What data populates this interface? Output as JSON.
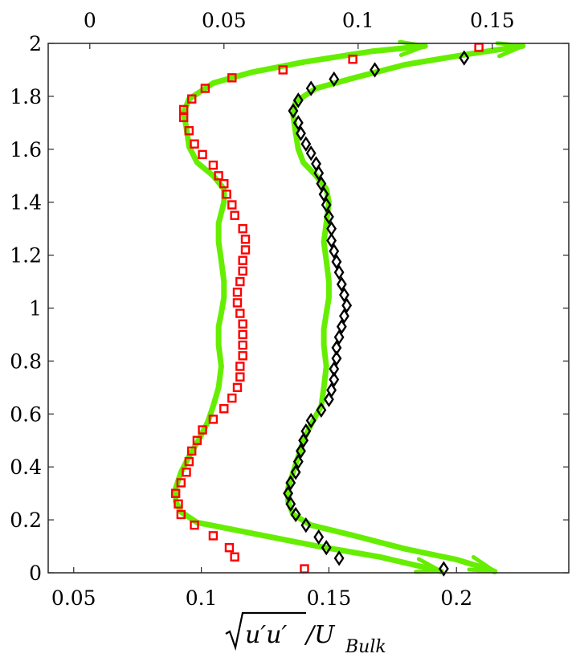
{
  "chart_data": {
    "type": "line",
    "xlabel": "√(u'u')/U_Bulk",
    "xlabel_parts": {
      "sqrt_text": "u′u′",
      "rest_text": "/U",
      "subscript": "Bulk"
    },
    "bottom_axis": {
      "ticks": [
        0.05,
        0.1,
        0.15,
        0.2
      ],
      "tick_labels": [
        "0.05",
        "0.1",
        "0.15",
        "0.2"
      ],
      "xlim": [
        0.04,
        0.244
      ]
    },
    "top_axis": {
      "ticks": [
        0,
        0.05,
        0.1,
        0.15
      ],
      "tick_labels": [
        "0",
        "0.05",
        "0.1",
        "0.15"
      ],
      "xlim": [
        -0.0155,
        0.1785
      ]
    },
    "y_axis": {
      "ticks": [
        0,
        0.2,
        0.4,
        0.6,
        0.8,
        1,
        1.2,
        1.4,
        1.6,
        1.8,
        2
      ],
      "tick_labels": [
        "0",
        "0.2",
        "0.4",
        "0.6",
        "0.8",
        "1",
        "1.2",
        "1.4",
        "1.6",
        "1.8",
        "2"
      ],
      "ylim": [
        0,
        2
      ]
    },
    "grid": false,
    "legend": "none",
    "colors": {
      "line": "#66ee00",
      "squares": "#ff0000",
      "diamonds": "#000000"
    },
    "series": [
      {
        "kind": "line",
        "axis": "top",
        "points": [
          [
            0.125,
            1.99
          ],
          [
            0.105,
            1.97
          ],
          [
            0.08,
            1.93
          ],
          [
            0.06,
            1.89
          ],
          [
            0.046,
            1.85
          ],
          [
            0.037,
            1.79
          ],
          [
            0.035,
            1.74
          ],
          [
            0.036,
            1.68
          ],
          [
            0.037,
            1.61
          ],
          [
            0.04,
            1.55
          ],
          [
            0.046,
            1.5
          ],
          [
            0.05,
            1.45
          ],
          [
            0.05,
            1.4
          ],
          [
            0.048,
            1.32
          ],
          [
            0.048,
            1.25
          ],
          [
            0.049,
            1.18
          ],
          [
            0.05,
            1.1
          ],
          [
            0.05,
            1.04
          ],
          [
            0.049,
            0.98
          ],
          [
            0.048,
            0.93
          ],
          [
            0.048,
            0.86
          ],
          [
            0.049,
            0.78
          ],
          [
            0.048,
            0.7
          ],
          [
            0.046,
            0.63
          ],
          [
            0.044,
            0.57
          ],
          [
            0.041,
            0.51
          ],
          [
            0.037,
            0.44
          ],
          [
            0.034,
            0.38
          ],
          [
            0.032,
            0.32
          ],
          [
            0.032,
            0.27
          ],
          [
            0.034,
            0.23
          ],
          [
            0.04,
            0.19
          ],
          [
            0.06,
            0.15
          ],
          [
            0.085,
            0.1
          ],
          [
            0.108,
            0.06
          ],
          [
            0.125,
            0.02
          ],
          [
            0.131,
            0.005
          ]
        ]
      },
      {
        "kind": "line",
        "axis": "bottom",
        "points": [
          [
            0.226,
            1.99
          ],
          [
            0.205,
            1.96
          ],
          [
            0.18,
            1.92
          ],
          [
            0.16,
            1.87
          ],
          [
            0.145,
            1.83
          ],
          [
            0.137,
            1.78
          ],
          [
            0.136,
            1.73
          ],
          [
            0.137,
            1.66
          ],
          [
            0.138,
            1.6
          ],
          [
            0.14,
            1.55
          ],
          [
            0.145,
            1.5
          ],
          [
            0.149,
            1.45
          ],
          [
            0.15,
            1.4
          ],
          [
            0.149,
            1.32
          ],
          [
            0.148,
            1.25
          ],
          [
            0.149,
            1.18
          ],
          [
            0.15,
            1.1
          ],
          [
            0.15,
            1.04
          ],
          [
            0.149,
            0.98
          ],
          [
            0.148,
            0.92
          ],
          [
            0.148,
            0.86
          ],
          [
            0.149,
            0.78
          ],
          [
            0.148,
            0.7
          ],
          [
            0.147,
            0.63
          ],
          [
            0.143,
            0.56
          ],
          [
            0.14,
            0.5
          ],
          [
            0.138,
            0.44
          ],
          [
            0.136,
            0.38
          ],
          [
            0.134,
            0.32
          ],
          [
            0.134,
            0.27
          ],
          [
            0.136,
            0.22
          ],
          [
            0.143,
            0.18
          ],
          [
            0.16,
            0.14
          ],
          [
            0.18,
            0.09
          ],
          [
            0.2,
            0.05
          ],
          [
            0.212,
            0.015
          ],
          [
            0.215,
            0.005
          ]
        ]
      },
      {
        "kind": "squares",
        "axis": "top",
        "points": [
          [
            0.145,
            1.985
          ],
          [
            0.098,
            1.94
          ],
          [
            0.072,
            1.9
          ],
          [
            0.053,
            1.87
          ],
          [
            0.043,
            1.83
          ],
          [
            0.038,
            1.79
          ],
          [
            0.035,
            1.75
          ],
          [
            0.035,
            1.72
          ],
          [
            0.037,
            1.67
          ],
          [
            0.039,
            1.62
          ],
          [
            0.042,
            1.58
          ],
          [
            0.046,
            1.54
          ],
          [
            0.048,
            1.5
          ],
          [
            0.05,
            1.47
          ],
          [
            0.051,
            1.43
          ],
          [
            0.053,
            1.39
          ],
          [
            0.054,
            1.35
          ],
          [
            0.057,
            1.3
          ],
          [
            0.058,
            1.26
          ],
          [
            0.058,
            1.22
          ],
          [
            0.057,
            1.18
          ],
          [
            0.057,
            1.14
          ],
          [
            0.056,
            1.1
          ],
          [
            0.055,
            1.06
          ],
          [
            0.055,
            1.02
          ],
          [
            0.056,
            0.98
          ],
          [
            0.057,
            0.94
          ],
          [
            0.057,
            0.9
          ],
          [
            0.057,
            0.86
          ],
          [
            0.057,
            0.82
          ],
          [
            0.056,
            0.78
          ],
          [
            0.056,
            0.74
          ],
          [
            0.055,
            0.7
          ],
          [
            0.053,
            0.66
          ],
          [
            0.05,
            0.62
          ],
          [
            0.046,
            0.58
          ],
          [
            0.042,
            0.54
          ],
          [
            0.04,
            0.5
          ],
          [
            0.038,
            0.46
          ],
          [
            0.037,
            0.42
          ],
          [
            0.036,
            0.38
          ],
          [
            0.034,
            0.34
          ],
          [
            0.032,
            0.3
          ],
          [
            0.033,
            0.26
          ],
          [
            0.034,
            0.22
          ],
          [
            0.039,
            0.18
          ],
          [
            0.046,
            0.14
          ],
          [
            0.052,
            0.095
          ],
          [
            0.054,
            0.06
          ],
          [
            0.08,
            0.015
          ]
        ]
      },
      {
        "kind": "diamonds",
        "axis": "bottom",
        "points": [
          [
            0.203,
            1.945
          ],
          [
            0.168,
            1.9
          ],
          [
            0.152,
            1.865
          ],
          [
            0.143,
            1.83
          ],
          [
            0.138,
            1.785
          ],
          [
            0.136,
            1.745
          ],
          [
            0.138,
            1.7
          ],
          [
            0.139,
            1.66
          ],
          [
            0.141,
            1.62
          ],
          [
            0.143,
            1.585
          ],
          [
            0.145,
            1.545
          ],
          [
            0.146,
            1.51
          ],
          [
            0.147,
            1.47
          ],
          [
            0.148,
            1.43
          ],
          [
            0.149,
            1.39
          ],
          [
            0.15,
            1.345
          ],
          [
            0.151,
            1.3
          ],
          [
            0.151,
            1.255
          ],
          [
            0.152,
            1.215
          ],
          [
            0.153,
            1.175
          ],
          [
            0.154,
            1.135
          ],
          [
            0.155,
            1.09
          ],
          [
            0.156,
            1.05
          ],
          [
            0.157,
            1.01
          ],
          [
            0.156,
            0.97
          ],
          [
            0.155,
            0.93
          ],
          [
            0.154,
            0.89
          ],
          [
            0.153,
            0.85
          ],
          [
            0.153,
            0.81
          ],
          [
            0.152,
            0.77
          ],
          [
            0.152,
            0.73
          ],
          [
            0.151,
            0.69
          ],
          [
            0.15,
            0.655
          ],
          [
            0.147,
            0.615
          ],
          [
            0.143,
            0.575
          ],
          [
            0.141,
            0.535
          ],
          [
            0.14,
            0.5
          ],
          [
            0.139,
            0.46
          ],
          [
            0.138,
            0.42
          ],
          [
            0.137,
            0.38
          ],
          [
            0.135,
            0.34
          ],
          [
            0.134,
            0.3
          ],
          [
            0.135,
            0.26
          ],
          [
            0.137,
            0.22
          ],
          [
            0.141,
            0.18
          ],
          [
            0.146,
            0.135
          ],
          [
            0.149,
            0.095
          ],
          [
            0.154,
            0.055
          ],
          [
            0.195,
            0.015
          ]
        ]
      }
    ]
  }
}
